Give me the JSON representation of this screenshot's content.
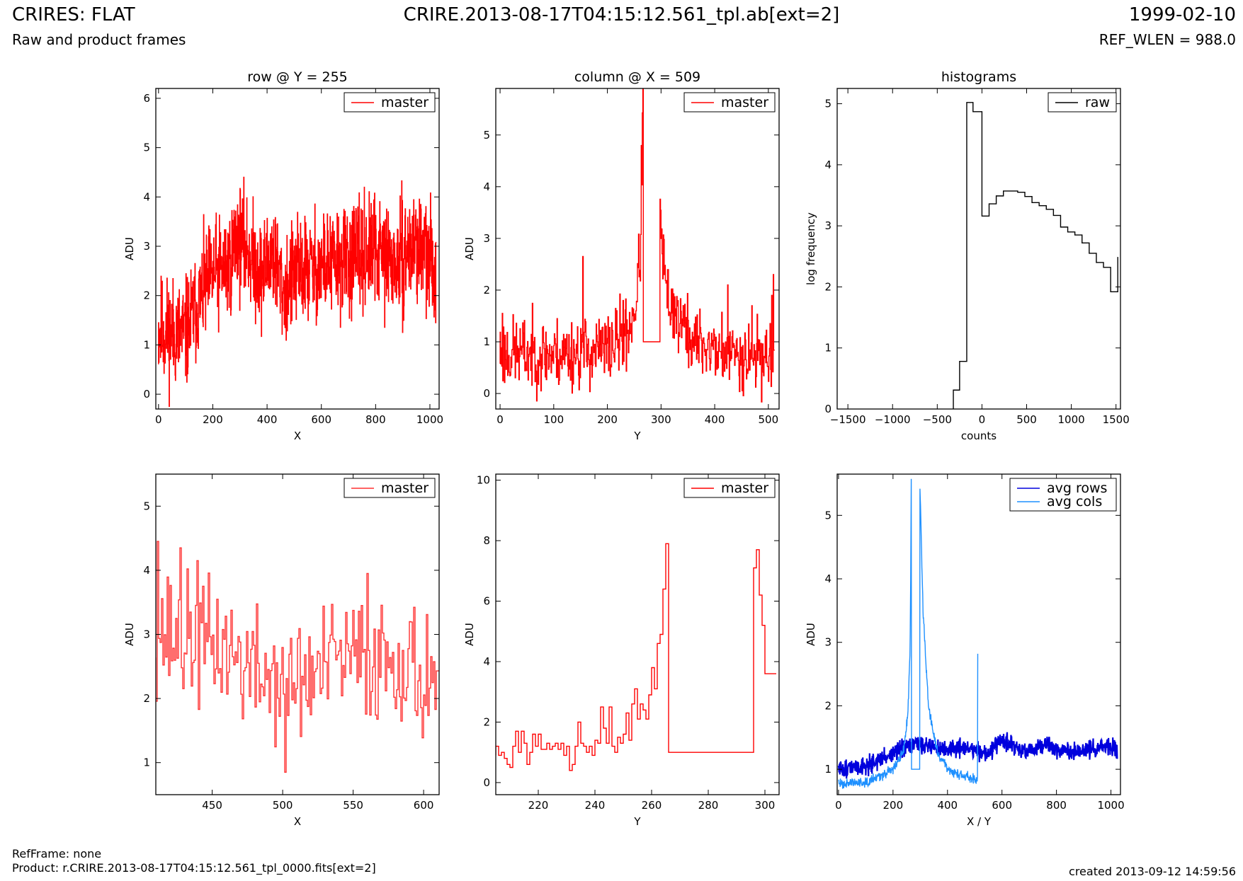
{
  "header": {
    "title_left": "CRIRES: FLAT",
    "subtitle_left": "Raw and product frames",
    "title_center": "CRIRE.2013-08-17T04:15:12.561_tpl.ab[ext=2]",
    "title_right": "1999-02-10",
    "subtitle_right": "REF_WLEN = 988.0"
  },
  "footer": {
    "ref_frame": "RefFrame: none",
    "product": "Product: r.CRIRE.2013-08-17T04:15:12.561_tpl_0000.fits[ext=2]",
    "created": "created 2013-09-12 14:59:56"
  },
  "chart_data": [
    {
      "type": "line",
      "title": "row @ Y = 255",
      "xlabel": "X",
      "ylabel": "ADU",
      "xlim": [
        -10,
        1034
      ],
      "ylim": [
        -0.3,
        6.2
      ],
      "xticks": [
        0,
        200,
        400,
        600,
        800,
        1000
      ],
      "yticks": [
        0,
        1,
        2,
        3,
        4,
        5,
        6
      ],
      "legend_position": "top-right",
      "series": [
        {
          "name": "master",
          "color": "#ff0000",
          "step": true,
          "noise": true,
          "seed": 11,
          "amp": 0.55,
          "nsamples": 1024,
          "x_start": 0,
          "x_end": 1023,
          "anchors": [
            [
              0,
              1.3
            ],
            [
              100,
              1.2
            ],
            [
              150,
              1.9
            ],
            [
              200,
              2.4
            ],
            [
              260,
              2.6
            ],
            [
              290,
              3.2
            ],
            [
              330,
              2.9
            ],
            [
              380,
              2.4
            ],
            [
              420,
              2.9
            ],
            [
              460,
              2.1
            ],
            [
              520,
              2.5
            ],
            [
              600,
              2.6
            ],
            [
              700,
              2.7
            ],
            [
              800,
              2.9
            ],
            [
              880,
              2.6
            ],
            [
              950,
              3.1
            ],
            [
              1023,
              2.5
            ]
          ]
        }
      ]
    },
    {
      "type": "line",
      "title": "column @ X = 509",
      "xlabel": "Y",
      "ylabel": "ADU",
      "xlim": [
        -8,
        520
      ],
      "ylim": [
        -0.3,
        5.9
      ],
      "xticks": [
        0,
        100,
        200,
        300,
        400,
        500
      ],
      "yticks": [
        0,
        1,
        2,
        3,
        4,
        5
      ],
      "legend_position": "top-right",
      "series": [
        {
          "name": "master",
          "color": "#ff0000",
          "step": true,
          "noise": true,
          "seed": 23,
          "amp": 0.35,
          "nsamples": 512,
          "x_start": 0,
          "x_end": 511,
          "flat_ranges": [
            [
              268,
              298,
              1.0
            ]
          ],
          "anchors": [
            [
              0,
              0.8
            ],
            [
              100,
              0.75
            ],
            [
              200,
              0.85
            ],
            [
              240,
              1.2
            ],
            [
              255,
              1.8
            ],
            [
              262,
              2.8
            ],
            [
              267,
              5.8
            ],
            [
              268,
              5.9
            ],
            [
              298,
              5.9
            ],
            [
              300,
              3.0
            ],
            [
              310,
              2.0
            ],
            [
              330,
              1.5
            ],
            [
              360,
              1.0
            ],
            [
              420,
              0.8
            ],
            [
              511,
              0.7
            ]
          ],
          "spikes": [
            [
              5,
              1.55
            ],
            [
              155,
              2.65
            ],
            [
              230,
              1.8
            ],
            [
              425,
              2.1
            ],
            [
              470,
              1.7
            ],
            [
              507,
              1.9
            ],
            [
              510,
              2.3
            ]
          ]
        }
      ]
    },
    {
      "type": "line",
      "title": "histograms",
      "xlabel": "counts",
      "ylabel": "log frequency",
      "xlim": [
        -1620,
        1550
      ],
      "ylim": [
        0,
        5.25
      ],
      "xticks": [
        -1500,
        -1000,
        -500,
        0,
        500,
        1000,
        1500
      ],
      "yticks": [
        0,
        1,
        2,
        3,
        4,
        5
      ],
      "legend_position": "top-right",
      "series": [
        {
          "name": "raw",
          "color": "#000000",
          "step": true,
          "bin_edges": [
            -320,
            -250,
            -170,
            -100,
            0,
            80,
            160,
            240,
            320,
            400,
            480,
            560,
            640,
            720,
            800,
            880,
            960,
            1040,
            1120,
            1200,
            1280,
            1360,
            1440,
            1520
          ],
          "values": [
            0.31,
            0.78,
            5.02,
            4.87,
            3.16,
            3.36,
            3.49,
            3.57,
            3.57,
            3.55,
            3.48,
            3.38,
            3.33,
            3.27,
            3.17,
            2.98,
            2.9,
            2.85,
            2.72,
            2.55,
            2.4,
            2.32,
            1.92,
            2.49
          ]
        }
      ]
    },
    {
      "type": "line",
      "title": "",
      "xlabel": "X",
      "ylabel": "ADU",
      "xlim": [
        410,
        611
      ],
      "ylim": [
        0.5,
        5.5
      ],
      "xticks": [
        450,
        500,
        550,
        600
      ],
      "yticks": [
        1,
        2,
        3,
        4,
        5
      ],
      "legend_position": "top-right",
      "series": [
        {
          "name": "master",
          "color": "#ff3030",
          "step": true,
          "noise": true,
          "seed": 37,
          "amp": 0.5,
          "nsamples": 200,
          "x_start": 410,
          "x_end": 610,
          "anchors": [
            [
              410,
              3.1
            ],
            [
              430,
              2.9
            ],
            [
              460,
              2.8
            ],
            [
              480,
              2.4
            ],
            [
              500,
              2.3
            ],
            [
              520,
              2.3
            ],
            [
              540,
              2.6
            ],
            [
              560,
              2.6
            ],
            [
              580,
              2.7
            ],
            [
              600,
              2.3
            ],
            [
              610,
              2.5
            ]
          ],
          "spikes": [
            [
              412,
              4.45
            ],
            [
              428,
              4.35
            ],
            [
              440,
              4.15
            ],
            [
              502,
              0.85
            ],
            [
              561,
              3.95
            ]
          ]
        }
      ]
    },
    {
      "type": "line",
      "title": "",
      "xlabel": "Y",
      "ylabel": "ADU",
      "xlim": [
        205,
        305
      ],
      "ylim": [
        -0.4,
        10.2
      ],
      "xticks": [
        220,
        240,
        260,
        280,
        300
      ],
      "yticks": [
        0,
        2,
        4,
        6,
        8,
        10
      ],
      "legend_position": "top-right",
      "series": [
        {
          "name": "master",
          "color": "#ff0000",
          "step": true,
          "points": [
            [
              205,
              0.9
            ],
            [
              206,
              1.2
            ],
            [
              207,
              0.9
            ],
            [
              208,
              1.0
            ],
            [
              209,
              0.8
            ],
            [
              210,
              0.6
            ],
            [
              211,
              0.5
            ],
            [
              212,
              1.2
            ],
            [
              213,
              1.7
            ],
            [
              214,
              1.0
            ],
            [
              215,
              1.7
            ],
            [
              216,
              1.3
            ],
            [
              217,
              0.6
            ],
            [
              218,
              1.0
            ],
            [
              219,
              1.6
            ],
            [
              220,
              1.2
            ],
            [
              221,
              1.6
            ],
            [
              222,
              1.1
            ],
            [
              223,
              1.1
            ],
            [
              224,
              1.3
            ],
            [
              225,
              1.1
            ],
            [
              226,
              1.2
            ],
            [
              227,
              1.3
            ],
            [
              228,
              1.1
            ],
            [
              229,
              1.3
            ],
            [
              230,
              0.9
            ],
            [
              231,
              1.2
            ],
            [
              232,
              0.4
            ],
            [
              233,
              0.6
            ],
            [
              234,
              1.2
            ],
            [
              235,
              2.0
            ],
            [
              236,
              1.3
            ],
            [
              237,
              1.2
            ],
            [
              238,
              1.0
            ],
            [
              239,
              1.2
            ],
            [
              240,
              0.9
            ],
            [
              241,
              1.4
            ],
            [
              242,
              1.3
            ],
            [
              243,
              2.5
            ],
            [
              244,
              1.8
            ],
            [
              245,
              1.3
            ],
            [
              246,
              2.5
            ],
            [
              247,
              1.2
            ],
            [
              248,
              1.0
            ],
            [
              249,
              1.5
            ],
            [
              250,
              1.3
            ],
            [
              251,
              1.6
            ],
            [
              252,
              2.3
            ],
            [
              253,
              1.4
            ],
            [
              254,
              2.6
            ],
            [
              255,
              3.1
            ],
            [
              256,
              2.1
            ],
            [
              257,
              2.6
            ],
            [
              258,
              2.4
            ],
            [
              259,
              2.1
            ],
            [
              260,
              2.9
            ],
            [
              261,
              3.8
            ],
            [
              262,
              3.1
            ],
            [
              263,
              4.6
            ],
            [
              264,
              4.9
            ],
            [
              265,
              6.4
            ],
            [
              266,
              7.9
            ],
            [
              267,
              1.0
            ],
            [
              296,
              1.0
            ],
            [
              297,
              7.1
            ],
            [
              298,
              7.7
            ],
            [
              299,
              6.2
            ],
            [
              300,
              5.2
            ],
            [
              302,
              3.6
            ],
            [
              303,
              3.6
            ]
          ]
        }
      ]
    },
    {
      "type": "line",
      "title": "",
      "xlabel": "X / Y",
      "ylabel": "ADU",
      "xlim": [
        -5,
        1035
      ],
      "ylim": [
        0.6,
        5.65
      ],
      "xticks": [
        0,
        200,
        400,
        600,
        800,
        1000
      ],
      "yticks": [
        1,
        2,
        3,
        4,
        5
      ],
      "legend_position": "top-right",
      "series": [
        {
          "name": "avg rows",
          "color": "#0000dd",
          "noise": true,
          "seed": 51,
          "amp": 0.07,
          "linewidth": 2.2,
          "nsamples": 1024,
          "x_start": 0,
          "x_end": 1023,
          "anchors": [
            [
              0,
              1.0
            ],
            [
              100,
              1.05
            ],
            [
              150,
              1.15
            ],
            [
              200,
              1.25
            ],
            [
              260,
              1.35
            ],
            [
              300,
              1.4
            ],
            [
              350,
              1.35
            ],
            [
              400,
              1.3
            ],
            [
              450,
              1.35
            ],
            [
              500,
              1.3
            ],
            [
              550,
              1.25
            ],
            [
              600,
              1.45
            ],
            [
              650,
              1.35
            ],
            [
              700,
              1.25
            ],
            [
              760,
              1.4
            ],
            [
              820,
              1.3
            ],
            [
              880,
              1.25
            ],
            [
              940,
              1.35
            ],
            [
              1000,
              1.35
            ],
            [
              1023,
              1.25
            ]
          ]
        },
        {
          "name": "avg cols",
          "color": "#1e90ff",
          "noise": true,
          "seed": 63,
          "amp": 0.04,
          "nsamples": 512,
          "x_start": 0,
          "x_end": 511,
          "flat_ranges": [
            [
              268,
              298,
              1.0
            ]
          ],
          "anchors": [
            [
              0,
              0.78
            ],
            [
              100,
              0.8
            ],
            [
              200,
              1.0
            ],
            [
              240,
              1.3
            ],
            [
              255,
              1.9
            ],
            [
              262,
              2.8
            ],
            [
              265,
              4.0
            ],
            [
              267,
              5.55
            ],
            [
              298,
              5.6
            ],
            [
              302,
              5.0
            ],
            [
              310,
              3.5
            ],
            [
              330,
              2.0
            ],
            [
              360,
              1.3
            ],
            [
              400,
              1.0
            ],
            [
              450,
              0.9
            ],
            [
              511,
              0.85
            ]
          ],
          "spikes": [
            [
              511,
              2.82
            ]
          ]
        }
      ]
    }
  ]
}
